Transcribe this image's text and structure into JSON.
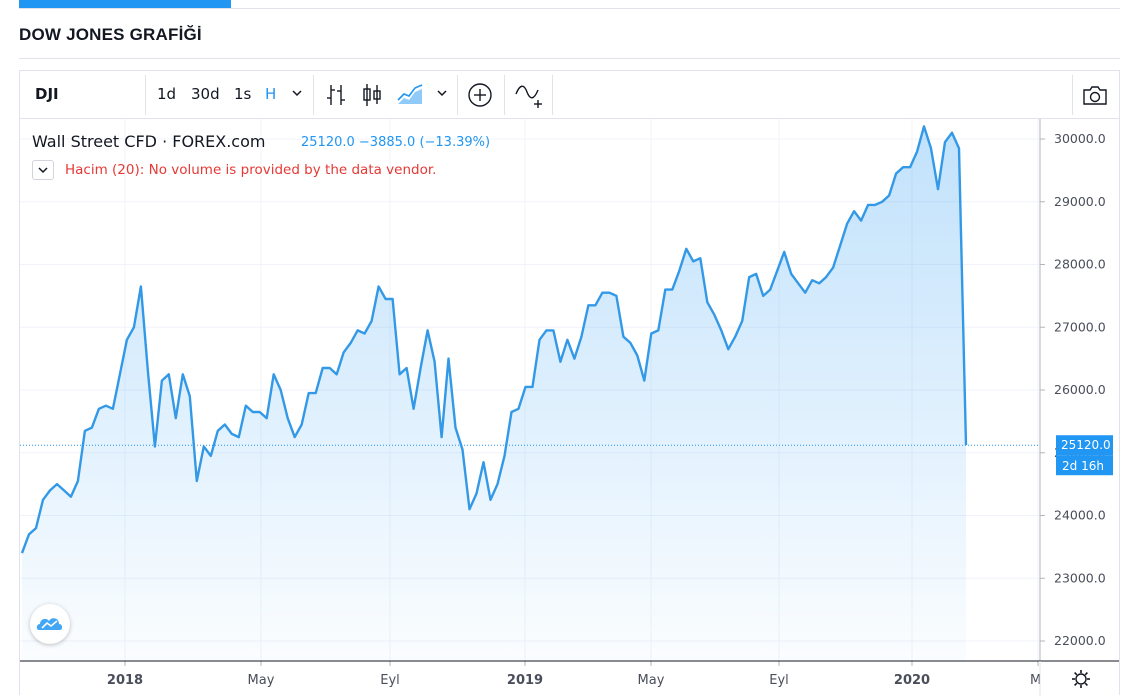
{
  "page": {
    "title": "DOW JONES GRAFİĞİ"
  },
  "toolbar": {
    "symbol": "DJI",
    "intervals": [
      "1d",
      "30d",
      "1s",
      "H"
    ],
    "icons": [
      "chevron-down-icon",
      "bar-chart-icon",
      "candle-chart-icon",
      "area-chart-icon",
      "chevron-down-icon",
      "add-circle-icon",
      "compare-icon",
      "camera-icon"
    ]
  },
  "legend": {
    "title": "Wall Street CFD · FOREX.com",
    "price": "25120.0",
    "change": "−3885.0",
    "change_pct": "(−13.39%)",
    "volume_note": "Hacim (20): No volume is provided by the data vendor."
  },
  "colors": {
    "accent": "#2196f3",
    "line": "#3399e6",
    "volume_note": "#e53935",
    "last_price_label": "#2196f3"
  },
  "last_price": {
    "label": "25120.0",
    "countdown": "2d 16h"
  },
  "chart_data": {
    "type": "area",
    "y_ticks": [
      "30000.0",
      "29000.0",
      "28000.0",
      "27000.0",
      "26000.0",
      "25000.0",
      "24000.0",
      "23000.0",
      "22000.0"
    ],
    "x_ticks": [
      "2018",
      "May",
      "Eyl",
      "2019",
      "May",
      "Eyl",
      "2020",
      "Ma"
    ],
    "ylim": [
      21700,
      30250
    ],
    "last_value": 25120,
    "values": [
      23400,
      23700,
      23800,
      24250,
      24400,
      24500,
      24400,
      24300,
      24550,
      25350,
      25400,
      25700,
      25750,
      25700,
      26250,
      26800,
      27000,
      27650,
      26300,
      25100,
      26150,
      26250,
      25550,
      26250,
      25900,
      24550,
      25100,
      24950,
      25350,
      25450,
      25300,
      25250,
      25750,
      25650,
      25650,
      25550,
      26250,
      26000,
      25550,
      25250,
      25450,
      25950,
      25950,
      26350,
      26350,
      26250,
      26600,
      26750,
      26950,
      26900,
      27100,
      27650,
      27450,
      27450,
      26250,
      26350,
      25700,
      26350,
      26950,
      26450,
      25250,
      26500,
      25400,
      25050,
      24100,
      24350,
      24850,
      24250,
      24500,
      24950,
      25650,
      25700,
      26050,
      26050,
      26800,
      26950,
      26950,
      26450,
      26800,
      26500,
      26850,
      27350,
      27350,
      27550,
      27550,
      27500,
      26850,
      26750,
      26550,
      26150,
      26900,
      26950,
      27600,
      27600,
      27900,
      28250,
      28050,
      28100,
      27400,
      27200,
      26950,
      26650,
      26850,
      27100,
      27800,
      27850,
      27500,
      27600,
      27900,
      28200,
      27850,
      27700,
      27550,
      27750,
      27700,
      27800,
      27950,
      28300,
      28650,
      28850,
      28700,
      28950,
      28950,
      29000,
      29100,
      29450,
      29550,
      29550,
      29800,
      30200,
      29850,
      29200,
      29950,
      30100,
      29850,
      25120
    ]
  }
}
